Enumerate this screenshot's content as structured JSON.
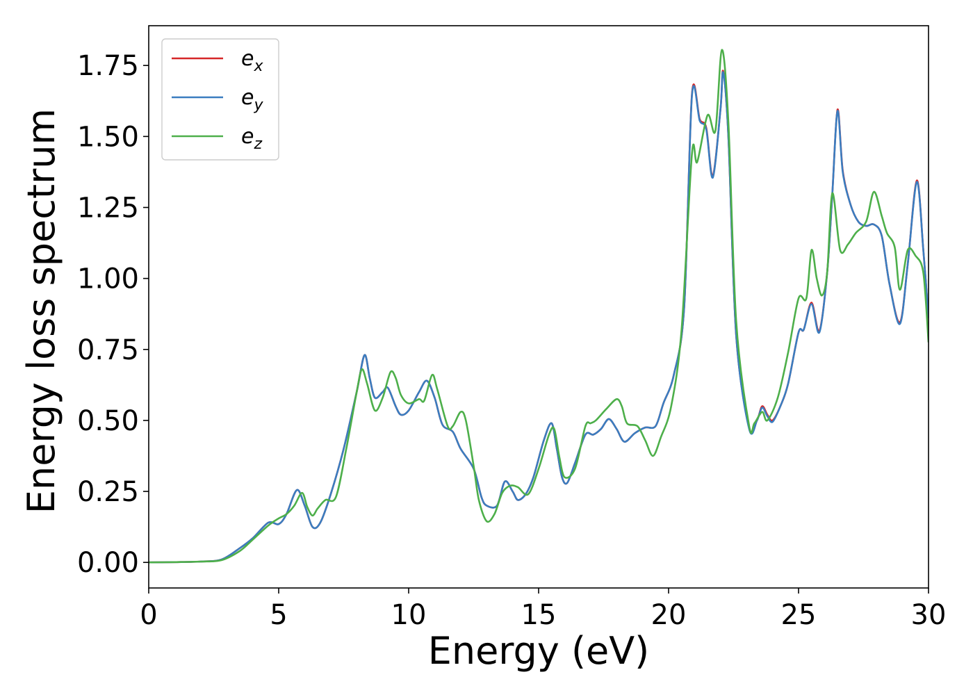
{
  "chart_data": {
    "type": "line",
    "title": "",
    "xlabel": "Energy (eV)",
    "ylabel": "Energy loss spectrum",
    "xlim": [
      0,
      30
    ],
    "ylim": [
      -0.09,
      1.89
    ],
    "xticks": [
      0,
      5,
      10,
      15,
      20,
      25,
      30
    ],
    "xtick_labels": [
      "0",
      "5",
      "10",
      "15",
      "20",
      "25",
      "30"
    ],
    "yticks": [
      0.0,
      0.25,
      0.5,
      0.75,
      1.0,
      1.25,
      1.5,
      1.75
    ],
    "ytick_labels": [
      "0.00",
      "0.25",
      "0.50",
      "0.75",
      "1.00",
      "1.25",
      "1.50",
      "1.75"
    ],
    "grid": false,
    "legend_position": "top-left",
    "series": [
      {
        "name": "e_x",
        "label_main": "e",
        "label_sub": "x",
        "color": "#d62728",
        "points": [
          [
            0,
            0.0
          ],
          [
            1,
            0.001
          ],
          [
            2,
            0.003
          ],
          [
            2.8,
            0.01
          ],
          [
            3.5,
            0.05
          ],
          [
            4,
            0.085
          ],
          [
            4.6,
            0.14
          ],
          [
            5,
            0.135
          ],
          [
            5.3,
            0.17
          ],
          [
            5.7,
            0.255
          ],
          [
            6.0,
            0.2
          ],
          [
            6.3,
            0.125
          ],
          [
            6.6,
            0.14
          ],
          [
            7,
            0.24
          ],
          [
            7.5,
            0.4
          ],
          [
            8.0,
            0.6
          ],
          [
            8.3,
            0.73
          ],
          [
            8.5,
            0.65
          ],
          [
            8.7,
            0.58
          ],
          [
            9.0,
            0.6
          ],
          [
            9.2,
            0.615
          ],
          [
            9.5,
            0.55
          ],
          [
            9.7,
            0.52
          ],
          [
            10,
            0.535
          ],
          [
            10.4,
            0.6
          ],
          [
            10.7,
            0.64
          ],
          [
            11.0,
            0.58
          ],
          [
            11.3,
            0.485
          ],
          [
            11.7,
            0.46
          ],
          [
            12.0,
            0.4
          ],
          [
            12.5,
            0.33
          ],
          [
            12.8,
            0.23
          ],
          [
            13.0,
            0.2
          ],
          [
            13.4,
            0.2
          ],
          [
            13.7,
            0.285
          ],
          [
            14.0,
            0.25
          ],
          [
            14.2,
            0.22
          ],
          [
            14.5,
            0.24
          ],
          [
            14.8,
            0.3
          ],
          [
            15.2,
            0.43
          ],
          [
            15.5,
            0.49
          ],
          [
            15.7,
            0.4
          ],
          [
            15.9,
            0.3
          ],
          [
            16.1,
            0.28
          ],
          [
            16.4,
            0.35
          ],
          [
            16.8,
            0.45
          ],
          [
            17.1,
            0.45
          ],
          [
            17.4,
            0.47
          ],
          [
            17.7,
            0.505
          ],
          [
            18.0,
            0.47
          ],
          [
            18.3,
            0.425
          ],
          [
            18.7,
            0.455
          ],
          [
            19.1,
            0.475
          ],
          [
            19.5,
            0.48
          ],
          [
            19.8,
            0.56
          ],
          [
            20.2,
            0.66
          ],
          [
            20.6,
            0.9
          ],
          [
            20.9,
            1.65
          ],
          [
            21.2,
            1.56
          ],
          [
            21.45,
            1.53
          ],
          [
            21.7,
            1.36
          ],
          [
            22.0,
            1.6
          ],
          [
            22.1,
            1.73
          ],
          [
            22.3,
            1.5
          ],
          [
            22.6,
            0.8
          ],
          [
            23.1,
            0.475
          ],
          [
            23.4,
            0.5
          ],
          [
            23.6,
            0.55
          ],
          [
            23.8,
            0.52
          ],
          [
            24.0,
            0.5
          ],
          [
            24.3,
            0.55
          ],
          [
            24.6,
            0.63
          ],
          [
            25.0,
            0.81
          ],
          [
            25.2,
            0.82
          ],
          [
            25.5,
            0.915
          ],
          [
            25.8,
            0.815
          ],
          [
            26.1,
            1.02
          ],
          [
            26.3,
            1.3
          ],
          [
            26.5,
            1.595
          ],
          [
            26.7,
            1.38
          ],
          [
            27.0,
            1.26
          ],
          [
            27.3,
            1.2
          ],
          [
            27.6,
            1.185
          ],
          [
            27.9,
            1.19
          ],
          [
            28.2,
            1.15
          ],
          [
            28.5,
            0.98
          ],
          [
            28.9,
            0.845
          ],
          [
            29.2,
            1.05
          ],
          [
            29.55,
            1.345
          ],
          [
            29.8,
            1.1
          ],
          [
            30,
            0.86
          ]
        ]
      },
      {
        "name": "e_y",
        "label_main": "e",
        "label_sub": "y",
        "color": "#3a7dc0",
        "points": [
          [
            0,
            0.0
          ],
          [
            1,
            0.001
          ],
          [
            2,
            0.003
          ],
          [
            2.8,
            0.01
          ],
          [
            3.5,
            0.05
          ],
          [
            4,
            0.085
          ],
          [
            4.6,
            0.14
          ],
          [
            5,
            0.135
          ],
          [
            5.3,
            0.17
          ],
          [
            5.7,
            0.255
          ],
          [
            6.0,
            0.2
          ],
          [
            6.3,
            0.125
          ],
          [
            6.6,
            0.14
          ],
          [
            7,
            0.24
          ],
          [
            7.5,
            0.4
          ],
          [
            8.0,
            0.6
          ],
          [
            8.3,
            0.73
          ],
          [
            8.5,
            0.65
          ],
          [
            8.7,
            0.58
          ],
          [
            9.0,
            0.6
          ],
          [
            9.2,
            0.615
          ],
          [
            9.5,
            0.55
          ],
          [
            9.7,
            0.52
          ],
          [
            10,
            0.535
          ],
          [
            10.4,
            0.6
          ],
          [
            10.7,
            0.64
          ],
          [
            11.0,
            0.58
          ],
          [
            11.3,
            0.485
          ],
          [
            11.7,
            0.46
          ],
          [
            12.0,
            0.4
          ],
          [
            12.5,
            0.33
          ],
          [
            12.8,
            0.23
          ],
          [
            13.0,
            0.2
          ],
          [
            13.4,
            0.2
          ],
          [
            13.7,
            0.285
          ],
          [
            14.0,
            0.25
          ],
          [
            14.2,
            0.22
          ],
          [
            14.5,
            0.24
          ],
          [
            14.8,
            0.3
          ],
          [
            15.2,
            0.43
          ],
          [
            15.5,
            0.49
          ],
          [
            15.7,
            0.4
          ],
          [
            15.9,
            0.3
          ],
          [
            16.1,
            0.28
          ],
          [
            16.4,
            0.35
          ],
          [
            16.8,
            0.45
          ],
          [
            17.1,
            0.45
          ],
          [
            17.4,
            0.47
          ],
          [
            17.7,
            0.505
          ],
          [
            18.0,
            0.47
          ],
          [
            18.3,
            0.425
          ],
          [
            18.7,
            0.455
          ],
          [
            19.1,
            0.475
          ],
          [
            19.5,
            0.48
          ],
          [
            19.8,
            0.56
          ],
          [
            20.2,
            0.66
          ],
          [
            20.6,
            0.9
          ],
          [
            20.9,
            1.645
          ],
          [
            21.2,
            1.555
          ],
          [
            21.45,
            1.525
          ],
          [
            21.7,
            1.355
          ],
          [
            22.0,
            1.6
          ],
          [
            22.1,
            1.725
          ],
          [
            22.3,
            1.5
          ],
          [
            22.6,
            0.8
          ],
          [
            23.1,
            0.47
          ],
          [
            23.4,
            0.5
          ],
          [
            23.6,
            0.545
          ],
          [
            23.8,
            0.515
          ],
          [
            24.0,
            0.495
          ],
          [
            24.3,
            0.55
          ],
          [
            24.6,
            0.63
          ],
          [
            25.0,
            0.81
          ],
          [
            25.2,
            0.82
          ],
          [
            25.5,
            0.91
          ],
          [
            25.8,
            0.81
          ],
          [
            26.1,
            1.02
          ],
          [
            26.3,
            1.3
          ],
          [
            26.5,
            1.59
          ],
          [
            26.7,
            1.375
          ],
          [
            27.0,
            1.26
          ],
          [
            27.3,
            1.2
          ],
          [
            27.6,
            1.185
          ],
          [
            27.9,
            1.19
          ],
          [
            28.2,
            1.15
          ],
          [
            28.5,
            0.98
          ],
          [
            28.9,
            0.84
          ],
          [
            29.2,
            1.05
          ],
          [
            29.55,
            1.34
          ],
          [
            29.8,
            1.1
          ],
          [
            30,
            0.86
          ]
        ]
      },
      {
        "name": "e_z",
        "label_main": "e",
        "label_sub": "z",
        "color": "#4daf4a",
        "points": [
          [
            0,
            0.0
          ],
          [
            1,
            0.001
          ],
          [
            2,
            0.003
          ],
          [
            2.8,
            0.008
          ],
          [
            3.5,
            0.04
          ],
          [
            4,
            0.08
          ],
          [
            4.6,
            0.13
          ],
          [
            5,
            0.155
          ],
          [
            5.3,
            0.17
          ],
          [
            5.6,
            0.2
          ],
          [
            5.9,
            0.245
          ],
          [
            6.1,
            0.195
          ],
          [
            6.3,
            0.165
          ],
          [
            6.5,
            0.19
          ],
          [
            6.8,
            0.22
          ],
          [
            7.2,
            0.23
          ],
          [
            7.6,
            0.4
          ],
          [
            8.0,
            0.6
          ],
          [
            8.2,
            0.68
          ],
          [
            8.4,
            0.63
          ],
          [
            8.7,
            0.535
          ],
          [
            9.0,
            0.58
          ],
          [
            9.3,
            0.67
          ],
          [
            9.5,
            0.65
          ],
          [
            9.7,
            0.59
          ],
          [
            10,
            0.56
          ],
          [
            10.4,
            0.575
          ],
          [
            10.6,
            0.57
          ],
          [
            10.9,
            0.66
          ],
          [
            11.1,
            0.61
          ],
          [
            11.5,
            0.48
          ],
          [
            11.7,
            0.48
          ],
          [
            12.0,
            0.53
          ],
          [
            12.2,
            0.5
          ],
          [
            12.5,
            0.34
          ],
          [
            12.7,
            0.22
          ],
          [
            13.0,
            0.145
          ],
          [
            13.3,
            0.17
          ],
          [
            13.6,
            0.245
          ],
          [
            13.9,
            0.27
          ],
          [
            14.2,
            0.265
          ],
          [
            14.6,
            0.24
          ],
          [
            15.0,
            0.33
          ],
          [
            15.4,
            0.45
          ],
          [
            15.6,
            0.47
          ],
          [
            15.8,
            0.37
          ],
          [
            16.0,
            0.3
          ],
          [
            16.4,
            0.33
          ],
          [
            16.8,
            0.48
          ],
          [
            17.0,
            0.49
          ],
          [
            17.2,
            0.5
          ],
          [
            17.6,
            0.54
          ],
          [
            18.0,
            0.575
          ],
          [
            18.2,
            0.55
          ],
          [
            18.4,
            0.49
          ],
          [
            18.8,
            0.48
          ],
          [
            19.1,
            0.43
          ],
          [
            19.4,
            0.375
          ],
          [
            19.7,
            0.44
          ],
          [
            20.1,
            0.55
          ],
          [
            20.5,
            0.82
          ],
          [
            20.9,
            1.44
          ],
          [
            21.1,
            1.41
          ],
          [
            21.5,
            1.575
          ],
          [
            21.8,
            1.52
          ],
          [
            22.05,
            1.805
          ],
          [
            22.3,
            1.55
          ],
          [
            22.6,
            0.85
          ],
          [
            23.1,
            0.48
          ],
          [
            23.3,
            0.49
          ],
          [
            23.6,
            0.53
          ],
          [
            23.8,
            0.5
          ],
          [
            24.2,
            0.58
          ],
          [
            24.6,
            0.74
          ],
          [
            25.0,
            0.93
          ],
          [
            25.3,
            0.93
          ],
          [
            25.5,
            1.1
          ],
          [
            25.7,
            1.0
          ],
          [
            25.9,
            0.94
          ],
          [
            26.1,
            1.02
          ],
          [
            26.3,
            1.3
          ],
          [
            26.6,
            1.1
          ],
          [
            26.9,
            1.12
          ],
          [
            27.2,
            1.16
          ],
          [
            27.6,
            1.2
          ],
          [
            27.9,
            1.305
          ],
          [
            28.2,
            1.22
          ],
          [
            28.4,
            1.16
          ],
          [
            28.7,
            1.11
          ],
          [
            28.9,
            0.96
          ],
          [
            29.2,
            1.1
          ],
          [
            29.5,
            1.08
          ],
          [
            29.8,
            1.02
          ],
          [
            30,
            0.775
          ]
        ]
      }
    ]
  }
}
